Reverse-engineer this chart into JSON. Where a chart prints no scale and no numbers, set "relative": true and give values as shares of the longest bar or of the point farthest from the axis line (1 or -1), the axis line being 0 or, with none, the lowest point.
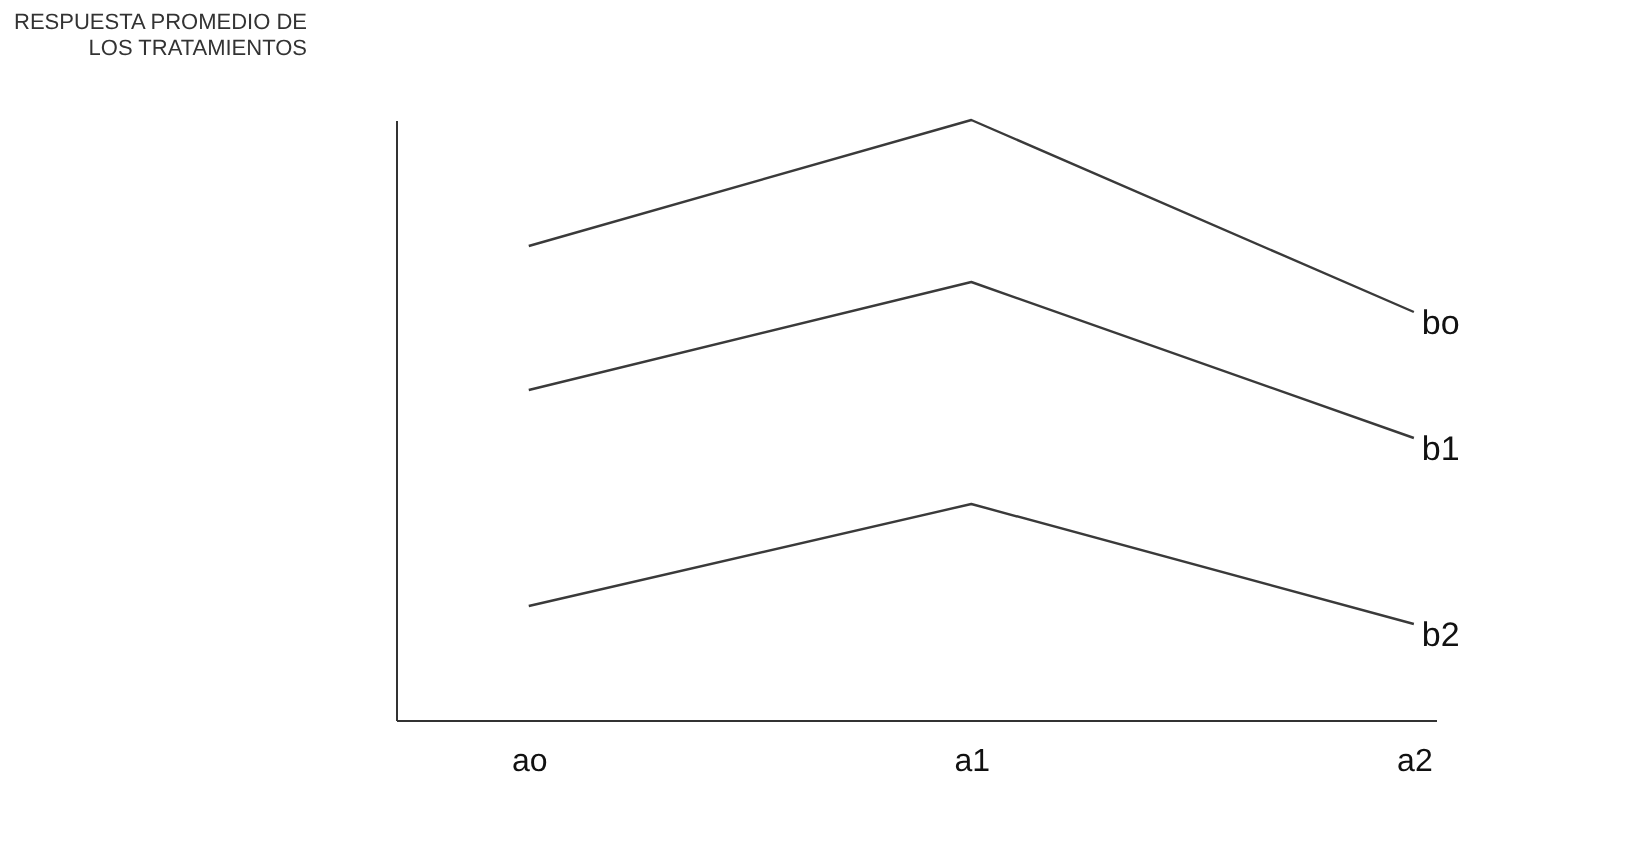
{
  "chart_data": {
    "type": "line",
    "relative": true,
    "ylabel": "RESPUESTA PROMEDIO DE LOS TRATAMIENTOS",
    "categories": [
      "ao",
      "a1",
      "a2"
    ],
    "series": [
      {
        "name": "bo",
        "color": "#3a3a3a",
        "values": [
          0.79,
          1.0,
          0.68
        ]
      },
      {
        "name": "b1",
        "color": "#3a3a3a",
        "values": [
          0.55,
          0.73,
          0.47
        ]
      },
      {
        "name": "b2",
        "color": "#3a3a3a",
        "values": [
          0.19,
          0.36,
          0.16
        ]
      }
    ],
    "legend": false,
    "grid": false,
    "marker": "none",
    "line_style": "solid"
  }
}
